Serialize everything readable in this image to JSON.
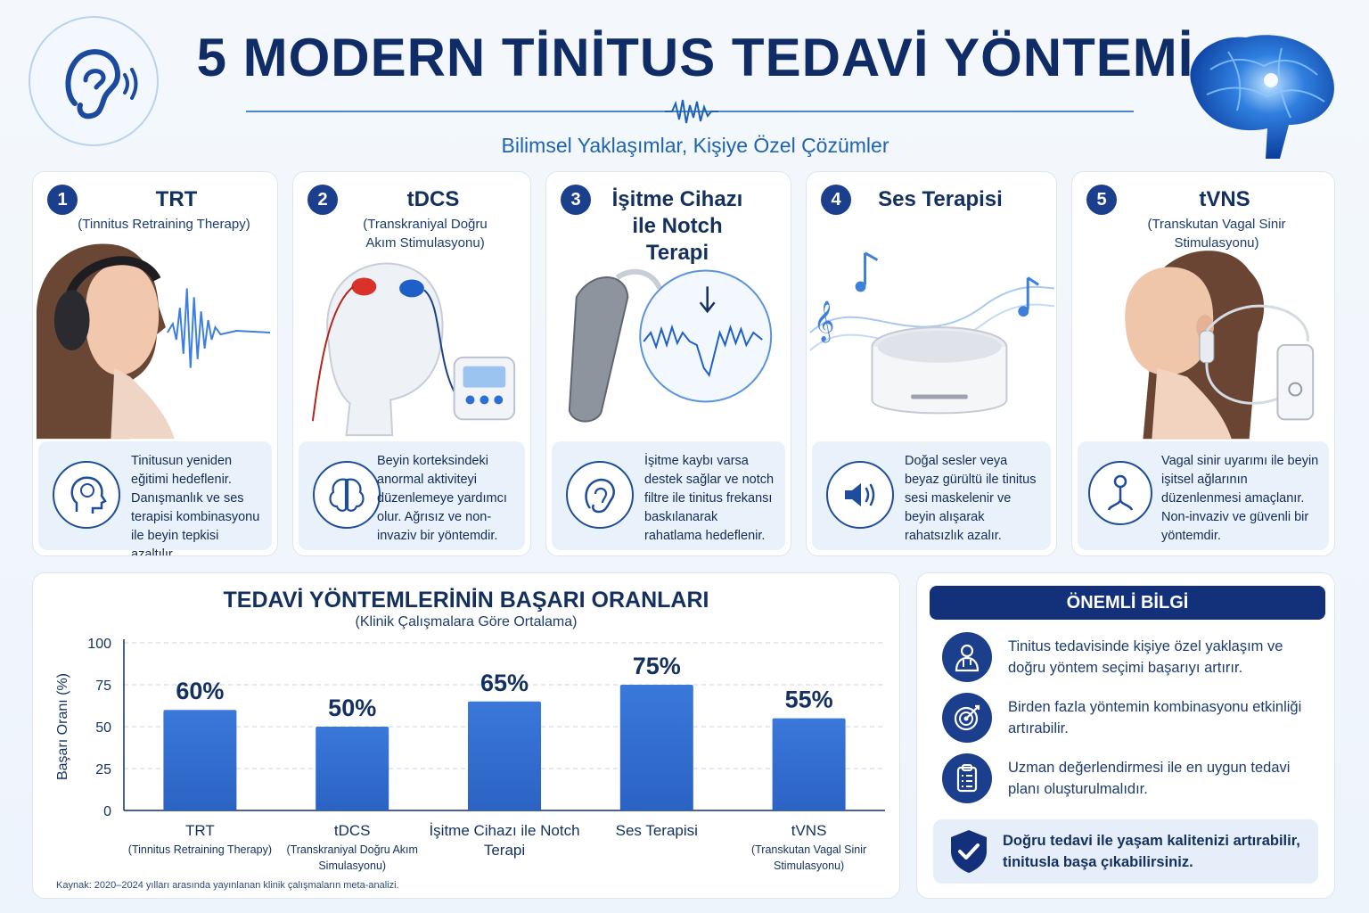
{
  "header": {
    "title": "5 MODERN TİNİTUS TEDAVİ YÖNTEMİ",
    "subtitle": "Bilimsel Yaklaşımlar, Kişiye Özel Çözümler"
  },
  "cards": [
    {
      "number": "1",
      "title": "TRT",
      "subtitle": "(Tinnitus Retraining Therapy)",
      "icon": "head-brain-icon",
      "description": "Tinitusun yeniden eğitimi hedeflenir. Danışmanlık ve ses terapisi kombinasyonu ile beyin tepkisi azaltılır."
    },
    {
      "number": "2",
      "title": "tDCS",
      "subtitle": "(Transkraniyal Doğru Akım Stimulasyonu)",
      "icon": "brain-icon",
      "description": "Beyin korteksindeki anormal aktiviteyi düzenlemeye yardımcı olur. Ağrısız ve non-invaziv bir yöntemdir."
    },
    {
      "number": "3",
      "title": "İşitme Cihazı ile Notch Terapi",
      "subtitle": "",
      "icon": "ear-icon",
      "description": "İşitme kaybı varsa destek sağlar ve notch filtre ile tinitus frekansı baskılanarak rahatlama hedeflenir."
    },
    {
      "number": "4",
      "title": "Ses Terapisi",
      "subtitle": "",
      "icon": "speaker-icon",
      "description": "Doğal sesler veya beyaz gürültü ile tinitus sesi maskelenir ve beyin alışarak rahatsızlık azalır."
    },
    {
      "number": "5",
      "title": "tVNS",
      "subtitle": "(Transkutan Vagal Sinir Stimulasyonu)",
      "icon": "nerve-icon",
      "description": "Vagal sinir uyarımı ile beyin işitsel ağlarının düzenlenmesi amaçlanır. Non-invaziv ve güvenli bir yöntemdir."
    }
  ],
  "chart_data": {
    "type": "bar",
    "title": "TEDAVİ YÖNTEMLERİNİN BAŞARI ORANLARI",
    "subtitle": "(Klinik Çalışmalara Göre Ortalama)",
    "ylabel": "Başarı Oranı (%)",
    "ylim": [
      0,
      100
    ],
    "yticks": [
      0,
      25,
      50,
      75,
      100
    ],
    "categories": [
      {
        "name": "TRT",
        "sub": "(Tinnitus Retraining Therapy)"
      },
      {
        "name": "tDCS",
        "sub": "(Transkraniyal Doğru Akım Simulasyonu)"
      },
      {
        "name": "İşitme Cihazı ile Notch Terapi",
        "sub": ""
      },
      {
        "name": "Ses Terapisi",
        "sub": ""
      },
      {
        "name": "tVNS",
        "sub": "(Transkutan Vagal Sinir Stimulasyonu)"
      }
    ],
    "values": [
      60,
      50,
      65,
      75,
      55
    ],
    "value_labels": [
      "60%",
      "50%",
      "65%",
      "75%",
      "55%"
    ],
    "grid": true,
    "bar_color": "#2b63c4",
    "source": "Kaynak: 2020–2024 yılları arasında yayınlanan klinik çalışmaların meta-analizi."
  },
  "info": {
    "heading": "ÖNEMLİ BİLGİ",
    "items": [
      {
        "icon": "doctor-icon",
        "text": "Tinitus tedavisinde kişiye özel yaklaşım ve doğru yöntem seçimi başarıyı artırır."
      },
      {
        "icon": "target-icon",
        "text": "Birden fazla yöntemin kombinasyonu etkinliği artırabilir."
      },
      {
        "icon": "clipboard-icon",
        "text": "Uzman değerlendirmesi ile en uygun tedavi planı oluşturulmalıdır."
      }
    ],
    "footer": "Doğru tedavi ile yaşam kalitenizi artırabilir, tinitusla başa çıkabilirsiniz."
  },
  "colors": {
    "navy": "#12317a",
    "accent": "#1e63b3",
    "bar": "#2b63c4"
  }
}
